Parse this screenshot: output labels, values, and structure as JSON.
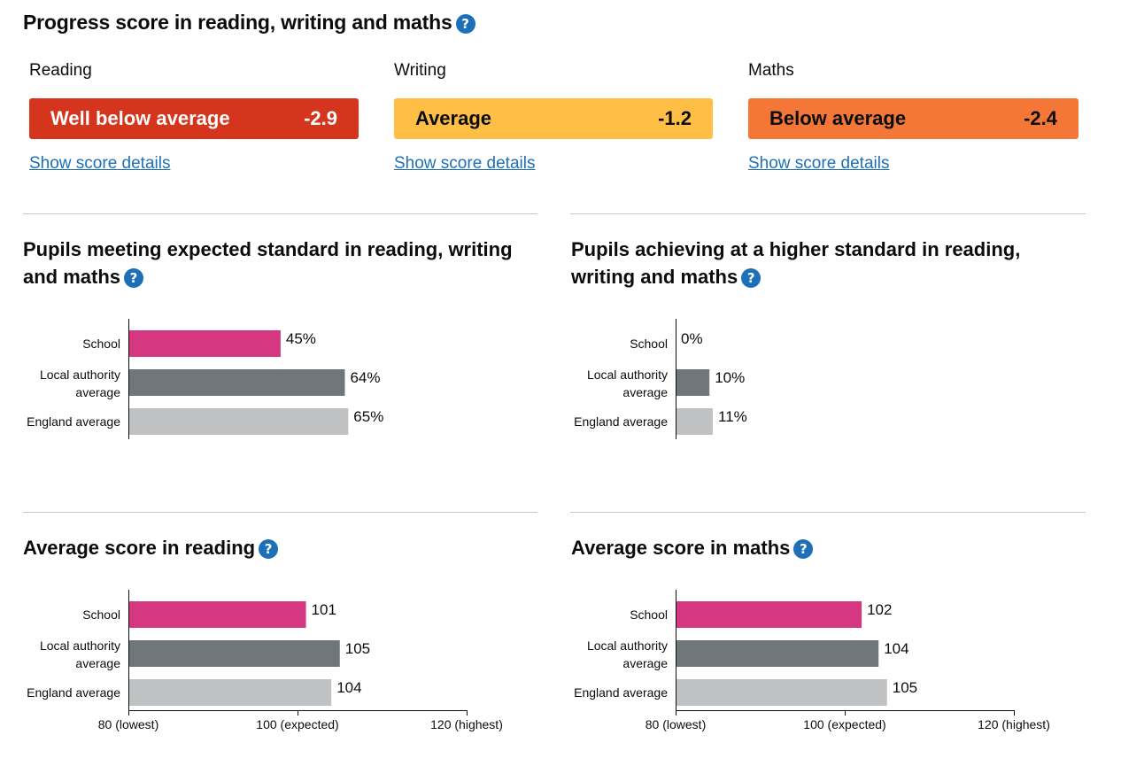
{
  "progress": {
    "title": "Progress score in reading, writing and maths",
    "help_icon": "question-mark-icon",
    "subjects": [
      {
        "label": "Reading",
        "band": "Well below average",
        "score": "-2.9",
        "color": "#d4351c",
        "text_color": "#ffffff",
        "link": "Show score details"
      },
      {
        "label": "Writing",
        "band": "Average",
        "score": "-1.2",
        "color": "#ffbf47",
        "text_color": "#0b0c0c",
        "link": "Show score details"
      },
      {
        "label": "Maths",
        "band": "Below average",
        "score": "-2.4",
        "color": "#f47738",
        "text_color": "#0b0c0c",
        "link": "Show score details"
      }
    ]
  },
  "sections": {
    "expected": {
      "title_line1": "Pupils meeting expected standard in reading, writing",
      "title_line2": "and maths"
    },
    "higher": {
      "title_line1": "Pupils achieving at a higher standard in reading,",
      "title_line2": "writing and maths"
    },
    "reading_avg": {
      "title_line1": "Average score in reading",
      "title_line2": ""
    },
    "maths_avg": {
      "title_line1": "Average score in maths",
      "title_line2": ""
    }
  },
  "colors": {
    "school": "#d53880",
    "local": "#6f777b",
    "england": "#bfc1c3"
  },
  "chart_data": [
    {
      "type": "bar",
      "orientation": "horizontal",
      "categories": [
        "School",
        "Local authority average",
        "England average"
      ],
      "values": [
        45,
        64,
        65
      ],
      "value_labels": [
        "45%",
        "64%",
        "65%"
      ],
      "xlim": [
        0,
        100
      ]
    },
    {
      "type": "bar",
      "orientation": "horizontal",
      "categories": [
        "School",
        "Local authority average",
        "England average"
      ],
      "values": [
        0,
        10,
        11
      ],
      "value_labels": [
        "0%",
        "10%",
        "11%"
      ],
      "xlim": [
        0,
        100
      ]
    },
    {
      "type": "bar",
      "orientation": "horizontal",
      "categories": [
        "School",
        "Local authority average",
        "England average"
      ],
      "values": [
        101,
        105,
        104
      ],
      "value_labels": [
        "101",
        "105",
        "104"
      ],
      "xlim": [
        80,
        120
      ],
      "ticks": [
        80,
        100,
        120
      ],
      "tick_labels": [
        "80 (lowest)",
        "100 (expected)",
        "120 (highest)"
      ]
    },
    {
      "type": "bar",
      "orientation": "horizontal",
      "categories": [
        "School",
        "Local authority average",
        "England average"
      ],
      "values": [
        102,
        104,
        105
      ],
      "value_labels": [
        "102",
        "104",
        "105"
      ],
      "xlim": [
        80,
        120
      ],
      "ticks": [
        80,
        100,
        120
      ],
      "tick_labels": [
        "80 (lowest)",
        "100 (expected)",
        "120 (highest)"
      ]
    }
  ]
}
